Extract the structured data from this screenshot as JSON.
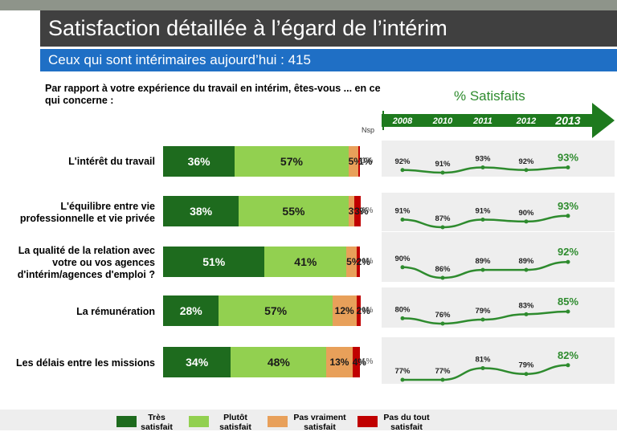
{
  "header": {
    "title": "Satisfaction détaillée à l’égard de l’intérim",
    "subtitle": "Ceux qui sont intérimaires aujourd’hui : 415"
  },
  "question": "Par rapport à votre expérience du travail en intérim, êtes-vous ... en ce qui concerne :",
  "nsp_header": "Nsp",
  "trend_title": "% Satisfaits",
  "colors": {
    "tres": "#1e6b1e",
    "plutot": "#92d050",
    "pas_vraiment": "#e8a05a",
    "pas_du_tout": "#c00000",
    "trend": "#2e8b2e",
    "arrow": "#1e7a1e"
  },
  "chart_data": [
    {
      "type": "bar",
      "stacked": true,
      "orientation": "horizontal",
      "categories": [
        "L'intérêt du travail",
        "L'équilibre entre vie professionnelle et vie privée",
        "La qualité de la relation avec votre ou vos agences d'intérim/agences d'emploi ?",
        "La rémunération",
        "Les délais entre les missions"
      ],
      "series": [
        {
          "name": "Très satisfait",
          "values": [
            36,
            38,
            51,
            28,
            34
          ]
        },
        {
          "name": "Plutôt satisfait",
          "values": [
            57,
            55,
            41,
            57,
            48
          ]
        },
        {
          "name": "Pas vraiment satisfait",
          "values": [
            5,
            3,
            5,
            12,
            13
          ]
        },
        {
          "name": "Pas du tout satisfait",
          "values": [
            1,
            3,
            2,
            2,
            4
          ]
        }
      ],
      "nsp": [
        "1%",
        "1%",
        "1%",
        "1%",
        "1%"
      ],
      "value_labels": [
        [
          "36%",
          "57%",
          "5%",
          "1%"
        ],
        [
          "38%",
          "55%",
          "3%",
          "3%"
        ],
        [
          "51%",
          "41%",
          "5%",
          "2%"
        ],
        [
          "28%",
          "57%",
          "12%",
          "2%"
        ],
        [
          "34%",
          "48%",
          "13%",
          "4%"
        ]
      ],
      "legend_position": "bottom"
    },
    {
      "type": "line",
      "title": "% Satisfaits",
      "x": [
        "2008",
        "2010",
        "2011",
        "2012",
        "2013"
      ],
      "series": [
        {
          "values": [
            92,
            91,
            93,
            92,
            93
          ],
          "labels": [
            "92%",
            "91%",
            "93%",
            "92%",
            "93%"
          ]
        },
        {
          "values": [
            91,
            87,
            91,
            90,
            93
          ],
          "labels": [
            "91%",
            "87%",
            "91%",
            "90%",
            "93%"
          ]
        },
        {
          "values": [
            90,
            86,
            89,
            89,
            92
          ],
          "labels": [
            "90%",
            "86%",
            "89%",
            "89%",
            "92%"
          ]
        },
        {
          "values": [
            80,
            76,
            79,
            83,
            85
          ],
          "labels": [
            "80%",
            "76%",
            "79%",
            "83%",
            "85%"
          ]
        },
        {
          "values": [
            77,
            77,
            81,
            79,
            82
          ],
          "labels": [
            "77%",
            "77%",
            "81%",
            "79%",
            "82%"
          ]
        }
      ]
    }
  ],
  "labels": {
    "cat0": "L'intérêt du travail",
    "cat1_l1": "L'équilibre entre vie",
    "cat1_l2": "professionnelle et vie privée",
    "cat2_l1": "La qualité de la relation avec",
    "cat2_l2": "votre ou vos agences",
    "cat2_l3": "d'intérim/agences d'emploi ?",
    "cat3": "La rémunération",
    "cat4": "Les délais entre les missions"
  },
  "legend": [
    {
      "line1": "Très",
      "line2": "satisfait"
    },
    {
      "line1": "Plutôt",
      "line2": "satisfait"
    },
    {
      "line1": "Pas vraiment",
      "line2": "satisfait"
    },
    {
      "line1": "Pas du tout",
      "line2": "satisfait"
    }
  ]
}
